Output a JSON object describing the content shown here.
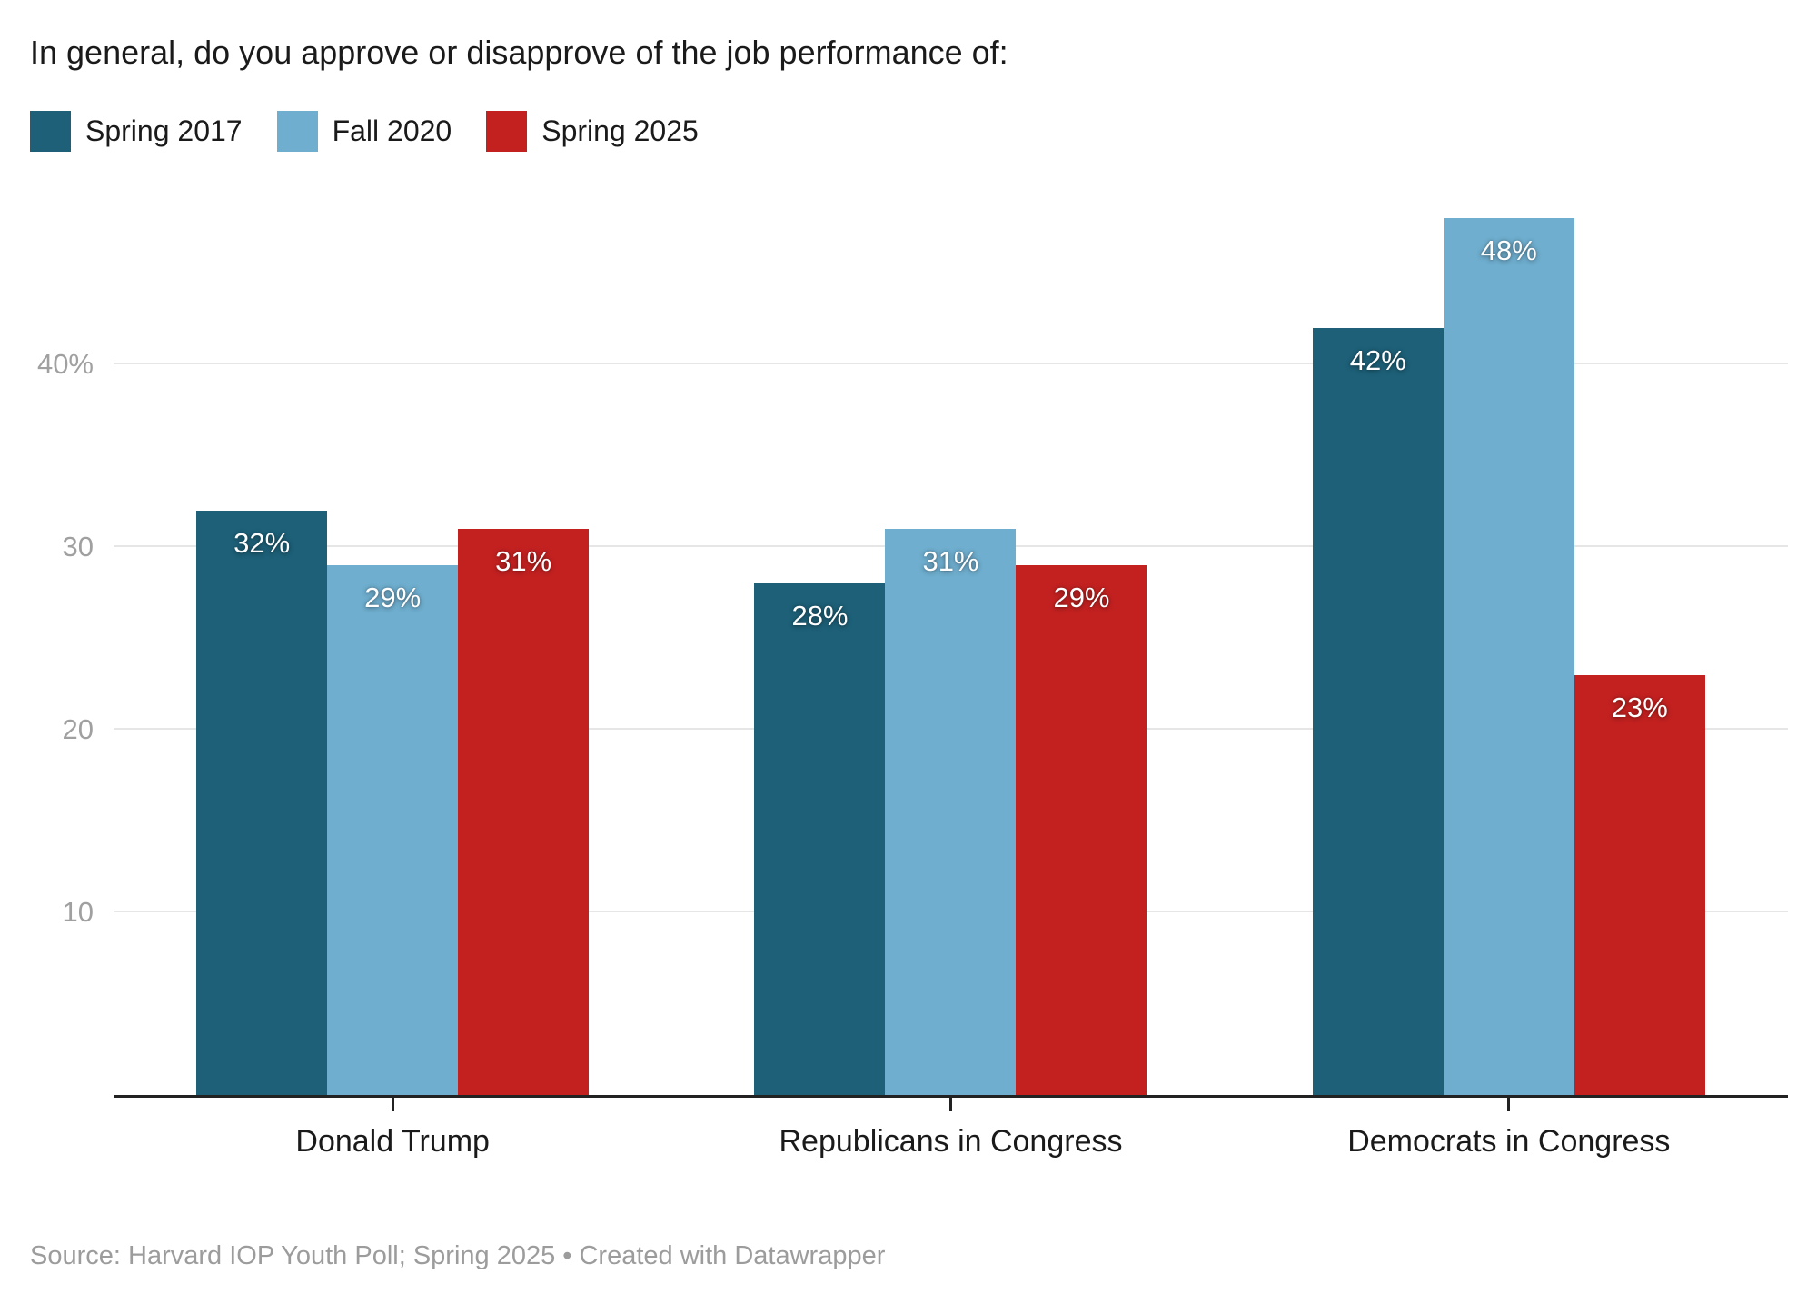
{
  "title": "In general, do you approve or disapprove of the job performance of:",
  "source": "Source: Harvard IOP Youth Poll; Spring 2025 • Created with Datawrapper",
  "legend": {
    "items": [
      {
        "label": "Spring 2017",
        "color": "#1d6078"
      },
      {
        "label": "Fall 2020",
        "color": "#6faecf"
      },
      {
        "label": "Spring 2025",
        "color": "#c32120"
      }
    ]
  },
  "colors": {
    "axis_line": "#222222",
    "gridline": "#e6e6e6",
    "ytick_text": "#a0a0a0",
    "body_text": "#1a1a1a",
    "source_text": "#9c9c9c",
    "bar_label_text": "#ffffff"
  },
  "chart_data": {
    "type": "bar",
    "title": "In general, do you approve or disapprove of the job performance of:",
    "categories": [
      "Donald Trump",
      "Republicans in Congress",
      "Democrats in Congress"
    ],
    "series": [
      {
        "name": "Spring 2017",
        "color": "#1d6078",
        "values": [
          32,
          28,
          42
        ]
      },
      {
        "name": "Fall 2020",
        "color": "#6faecf",
        "values": [
          29,
          31,
          48
        ]
      },
      {
        "name": "Spring 2025",
        "color": "#c32120",
        "values": [
          31,
          29,
          23
        ]
      }
    ],
    "value_suffix": "%",
    "data_labels": "inside-top",
    "yticks": [
      {
        "value": 10,
        "label": "10"
      },
      {
        "value": 20,
        "label": "20"
      },
      {
        "value": 30,
        "label": "30"
      },
      {
        "value": 40,
        "label": "40%"
      }
    ],
    "ylim": [
      0,
      50
    ],
    "grid": true,
    "legend_position": "top-left",
    "bar_gap_within_group": 0
  }
}
